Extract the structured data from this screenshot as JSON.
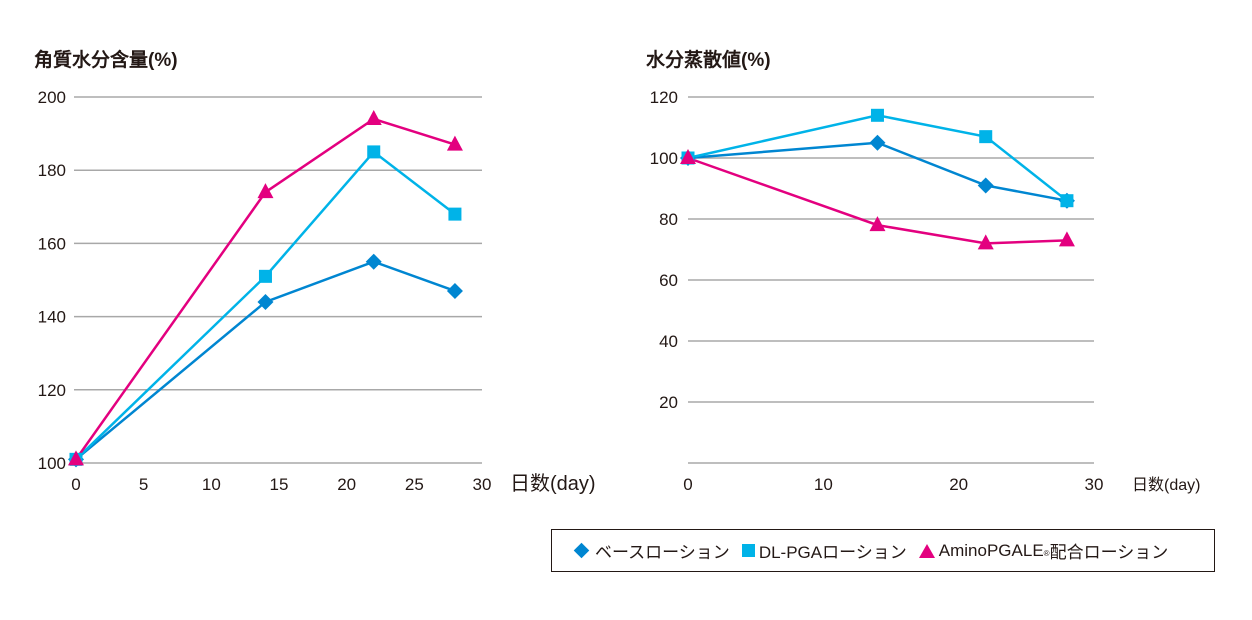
{
  "chart_data": [
    {
      "type": "line",
      "title": "角質水分含量(%)",
      "xlabel": "日数(day)",
      "ylabel": "",
      "x_ticks": [
        0,
        5,
        10,
        15,
        20,
        25,
        30
      ],
      "y_ticks": [
        100,
        120,
        140,
        160,
        180,
        200
      ],
      "xlim": [
        0,
        30
      ],
      "ylim": [
        100,
        200
      ],
      "grid": true,
      "series": [
        {
          "name": "ベースローション",
          "marker": "diamond",
          "color": "#0086d1",
          "x": [
            0,
            14,
            22,
            28
          ],
          "values": [
            101,
            144,
            155,
            147
          ]
        },
        {
          "name": "DL-PGAローション",
          "marker": "square",
          "color": "#00b3e8",
          "x": [
            0,
            14,
            22,
            28
          ],
          "values": [
            101,
            151,
            185,
            168
          ]
        },
        {
          "name": "AminoPGALE配合ローション",
          "marker": "triangle",
          "color": "#e3007f",
          "x": [
            0,
            14,
            22,
            28
          ],
          "values": [
            101,
            174,
            194,
            187
          ]
        }
      ]
    },
    {
      "type": "line",
      "title": "水分蒸散値(%)",
      "xlabel": "日数(day)",
      "ylabel": "",
      "x_ticks": [
        0,
        10,
        20,
        30
      ],
      "y_ticks": [
        20,
        40,
        60,
        80,
        100,
        120
      ],
      "xlim": [
        0,
        30
      ],
      "ylim": [
        0,
        120
      ],
      "grid": true,
      "series": [
        {
          "name": "ベースローション",
          "marker": "diamond",
          "color": "#0086d1",
          "x": [
            0,
            14,
            22,
            28
          ],
          "values": [
            100,
            105,
            91,
            86
          ]
        },
        {
          "name": "DL-PGAローション",
          "marker": "square",
          "color": "#00b3e8",
          "x": [
            0,
            14,
            22,
            28
          ],
          "values": [
            100,
            114,
            107,
            86
          ]
        },
        {
          "name": "AminoPGALE配合ローション",
          "marker": "triangle",
          "color": "#e3007f",
          "x": [
            0,
            14,
            22,
            28
          ],
          "values": [
            100,
            78,
            72,
            73
          ]
        }
      ]
    }
  ],
  "legend": {
    "placement": "bottom-right",
    "items": [
      {
        "label": "ベースローション"
      },
      {
        "label": "DL-PGAローション"
      },
      {
        "label_prefix": "AminoPGALE",
        "label_sup": "®",
        "label_suffix": "配合ローション"
      }
    ]
  }
}
